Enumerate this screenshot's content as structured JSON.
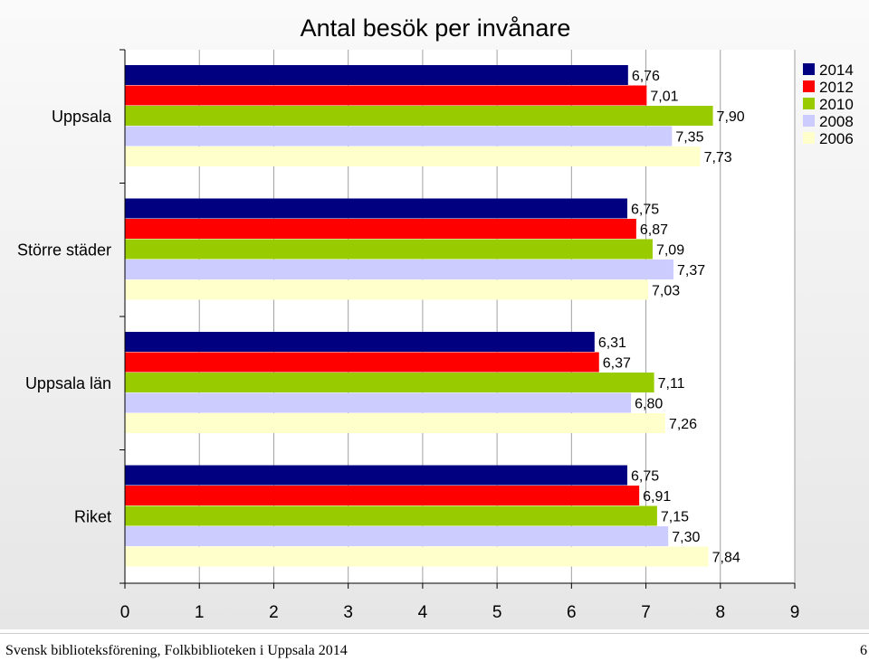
{
  "chart_data": {
    "type": "bar",
    "orientation": "horizontal",
    "title": "Antal besök per invånare",
    "categories": [
      "Uppsala",
      "Större städer",
      "Uppsala län",
      "Riket"
    ],
    "series": [
      {
        "name": "2014",
        "color": "#000080",
        "values": [
          6.76,
          6.75,
          6.31,
          6.75
        ],
        "labels": [
          "6,76",
          "6,75",
          "6,31",
          "6,75"
        ]
      },
      {
        "name": "2012",
        "color": "#ff0000",
        "values": [
          7.01,
          6.87,
          6.37,
          6.91
        ],
        "labels": [
          "7,01",
          "6,87",
          "6,37",
          "6,91"
        ]
      },
      {
        "name": "2010",
        "color": "#99cc00",
        "values": [
          7.9,
          7.09,
          7.11,
          7.15
        ],
        "labels": [
          "7,90",
          "7,09",
          "7,11",
          "7,15"
        ]
      },
      {
        "name": "2008",
        "color": "#ccccff",
        "values": [
          7.35,
          7.37,
          6.8,
          7.3
        ],
        "labels": [
          "7,35",
          "7,37",
          "6,80",
          "7,30"
        ]
      },
      {
        "name": "2006",
        "color": "#ffffcc",
        "values": [
          7.73,
          7.03,
          7.26,
          7.84
        ],
        "labels": [
          "7,73",
          "7,03",
          "7,26",
          "7,84"
        ]
      }
    ],
    "xlim": [
      0,
      9
    ],
    "xticks": [
      "0",
      "1",
      "2",
      "3",
      "4",
      "5",
      "6",
      "7",
      "8",
      "9"
    ],
    "grid": "vertical",
    "legend": "top-right"
  },
  "footer": {
    "text": "Svensk biblioteksförening, Folkbiblioteken i Uppsala 2014",
    "page": "6"
  }
}
